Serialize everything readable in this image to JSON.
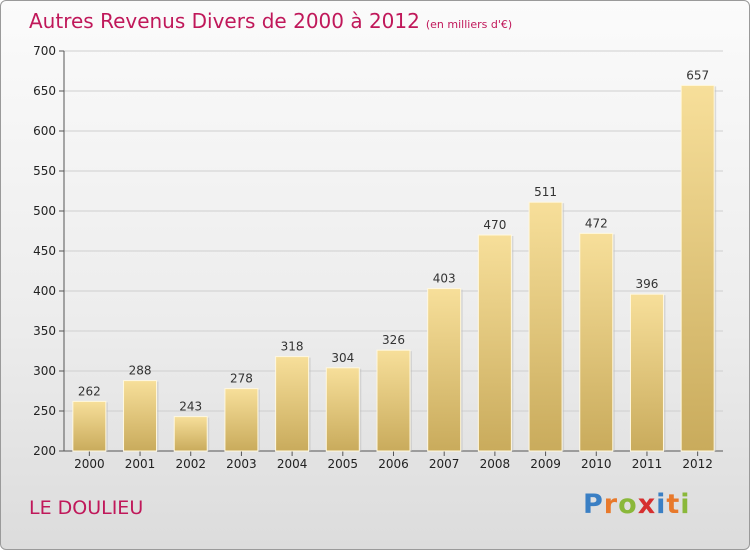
{
  "title": "Autres Revenus Divers de 2000 à 2012",
  "subtitle": "(en milliers d'€)",
  "location": "LE DOULIEU",
  "logo": {
    "letters": [
      "P",
      "r",
      "o",
      "x",
      "i",
      "t",
      "i"
    ],
    "colors": [
      "#3a7fc4",
      "#e8792b",
      "#8ab83a",
      "#d62f2f",
      "#3a7fc4",
      "#e8792b",
      "#8ab83a"
    ]
  },
  "colors": {
    "title": "#c0185a",
    "bar_top": "#f7df9a",
    "bar_bottom": "#c9ab5c",
    "grid": "#cfcfcf"
  },
  "chart_data": {
    "type": "bar",
    "categories": [
      "2000",
      "2001",
      "2002",
      "2003",
      "2004",
      "2005",
      "2006",
      "2007",
      "2008",
      "2009",
      "2010",
      "2011",
      "2012"
    ],
    "values": [
      262,
      288,
      243,
      278,
      318,
      304,
      326,
      403,
      470,
      511,
      472,
      396,
      657
    ],
    "ylim": [
      200,
      700
    ],
    "yticks": [
      200,
      250,
      300,
      350,
      400,
      450,
      500,
      550,
      600,
      650,
      700
    ],
    "grid": true
  }
}
